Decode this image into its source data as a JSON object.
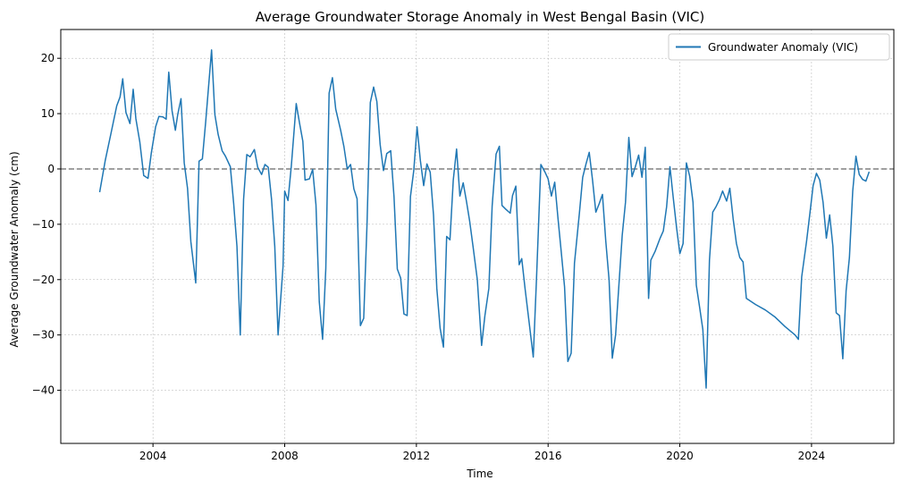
{
  "chart_data": {
    "type": "line",
    "title": "Average Groundwater Storage Anomaly in West Bengal Basin (VIC)",
    "xlabel": "Time",
    "ylabel": "Average Groundwater Anomaly (cm)",
    "xlim": [
      2001.2,
      2026.5
    ],
    "ylim": [
      -49.6,
      25.2
    ],
    "xticks": [
      2004,
      2008,
      2012,
      2016,
      2020,
      2024
    ],
    "xtick_labels": [
      "2004",
      "2008",
      "2012",
      "2016",
      "2020",
      "2024"
    ],
    "yticks": [
      -40,
      -30,
      -20,
      -10,
      0,
      10,
      20
    ],
    "ytick_labels": [
      "−40",
      "−30",
      "−20",
      "−10",
      "0",
      "10",
      "20"
    ],
    "grid": true,
    "reference_line": {
      "y": 0,
      "style": "dashed",
      "color": "#808080"
    },
    "legend": {
      "placement": "top-right"
    },
    "series": [
      {
        "name": "Groundwater Anomaly (VIC)",
        "color": "#1f77b4",
        "points": [
          [
            2002.38,
            -4.2
          ],
          [
            2002.55,
            1.5
          ],
          [
            2002.72,
            6.3
          ],
          [
            2002.9,
            11.4
          ],
          [
            2003.0,
            13.0
          ],
          [
            2003.08,
            16.3
          ],
          [
            2003.18,
            10.2
          ],
          [
            2003.3,
            8.2
          ],
          [
            2003.4,
            14.4
          ],
          [
            2003.48,
            9.1
          ],
          [
            2003.6,
            4.9
          ],
          [
            2003.72,
            -1.2
          ],
          [
            2003.85,
            -1.7
          ],
          [
            2003.95,
            2.9
          ],
          [
            2004.08,
            7.6
          ],
          [
            2004.18,
            9.5
          ],
          [
            2004.3,
            9.4
          ],
          [
            2004.4,
            9.0
          ],
          [
            2004.48,
            17.5
          ],
          [
            2004.58,
            10.5
          ],
          [
            2004.68,
            7.0
          ],
          [
            2004.75,
            9.8
          ],
          [
            2004.85,
            12.7
          ],
          [
            2004.95,
            1.1
          ],
          [
            2005.05,
            -3.5
          ],
          [
            2005.15,
            -13.1
          ],
          [
            2005.3,
            -20.6
          ],
          [
            2005.4,
            1.4
          ],
          [
            2005.5,
            1.8
          ],
          [
            2005.6,
            8.5
          ],
          [
            2005.78,
            21.5
          ],
          [
            2005.88,
            9.8
          ],
          [
            2005.98,
            6.2
          ],
          [
            2006.1,
            3.3
          ],
          [
            2006.2,
            2.3
          ],
          [
            2006.35,
            0.4
          ],
          [
            2006.45,
            -6.2
          ],
          [
            2006.55,
            -14.0
          ],
          [
            2006.65,
            -30.0
          ],
          [
            2006.75,
            -5.5
          ],
          [
            2006.85,
            2.6
          ],
          [
            2006.95,
            2.2
          ],
          [
            2007.08,
            3.5
          ],
          [
            2007.18,
            0.3
          ],
          [
            2007.3,
            -1.0
          ],
          [
            2007.4,
            0.8
          ],
          [
            2007.5,
            0.3
          ],
          [
            2007.6,
            -5.5
          ],
          [
            2007.7,
            -14.0
          ],
          [
            2007.8,
            -30.0
          ],
          [
            2007.95,
            -17.5
          ],
          [
            2008.0,
            -4.0
          ],
          [
            2008.1,
            -5.7
          ],
          [
            2008.2,
            0.5
          ],
          [
            2008.35,
            11.8
          ],
          [
            2008.45,
            8.3
          ],
          [
            2008.55,
            5.0
          ],
          [
            2008.62,
            -2.0
          ],
          [
            2008.75,
            -1.8
          ],
          [
            2008.85,
            -0.1
          ],
          [
            2008.95,
            -6.5
          ],
          [
            2009.05,
            -24.0
          ],
          [
            2009.15,
            -30.8
          ],
          [
            2009.25,
            -18.0
          ],
          [
            2009.35,
            13.7
          ],
          [
            2009.45,
            16.5
          ],
          [
            2009.55,
            10.8
          ],
          [
            2009.7,
            7.0
          ],
          [
            2009.8,
            4.0
          ],
          [
            2009.9,
            0.0
          ],
          [
            2010.0,
            0.8
          ],
          [
            2010.1,
            -3.6
          ],
          [
            2010.2,
            -5.4
          ],
          [
            2010.3,
            -28.3
          ],
          [
            2010.4,
            -27.0
          ],
          [
            2010.5,
            -10.0
          ],
          [
            2010.6,
            12.0
          ],
          [
            2010.7,
            14.8
          ],
          [
            2010.8,
            12.2
          ],
          [
            2010.9,
            4.4
          ],
          [
            2011.0,
            -0.3
          ],
          [
            2011.1,
            2.8
          ],
          [
            2011.22,
            3.3
          ],
          [
            2011.32,
            -5.0
          ],
          [
            2011.42,
            -18.1
          ],
          [
            2011.52,
            -19.7
          ],
          [
            2011.62,
            -26.2
          ],
          [
            2011.72,
            -26.5
          ],
          [
            2011.82,
            -5.0
          ],
          [
            2011.92,
            -0.3
          ],
          [
            2012.02,
            7.6
          ],
          [
            2012.12,
            1.5
          ],
          [
            2012.22,
            -3.0
          ],
          [
            2012.32,
            0.9
          ],
          [
            2012.42,
            -0.6
          ],
          [
            2012.52,
            -8.3
          ],
          [
            2012.62,
            -21.6
          ],
          [
            2012.72,
            -28.8
          ],
          [
            2012.82,
            -32.2
          ],
          [
            2012.92,
            -12.2
          ],
          [
            2013.02,
            -12.8
          ],
          [
            2013.12,
            -2.0
          ],
          [
            2013.22,
            3.6
          ],
          [
            2013.32,
            -4.9
          ],
          [
            2013.42,
            -2.5
          ],
          [
            2013.52,
            -5.8
          ],
          [
            2013.62,
            -9.5
          ],
          [
            2013.72,
            -14.0
          ],
          [
            2013.85,
            -20.0
          ],
          [
            2013.98,
            -31.9
          ],
          [
            2014.08,
            -26.5
          ],
          [
            2014.2,
            -21.6
          ],
          [
            2014.3,
            -6.7
          ],
          [
            2014.42,
            2.7
          ],
          [
            2014.52,
            4.1
          ],
          [
            2014.6,
            -6.6
          ],
          [
            2014.72,
            -7.3
          ],
          [
            2014.85,
            -8.0
          ],
          [
            2014.92,
            -4.8
          ],
          [
            2015.02,
            -3.1
          ],
          [
            2015.12,
            -17.3
          ],
          [
            2015.2,
            -16.2
          ],
          [
            2015.3,
            -21.6
          ],
          [
            2015.42,
            -27.5
          ],
          [
            2015.55,
            -34.0
          ],
          [
            2015.65,
            -19.5
          ],
          [
            2015.78,
            0.8
          ],
          [
            2015.9,
            -0.5
          ],
          [
            2016.0,
            -1.8
          ],
          [
            2016.1,
            -4.9
          ],
          [
            2016.2,
            -2.4
          ],
          [
            2016.3,
            -9.0
          ],
          [
            2016.4,
            -15.0
          ],
          [
            2016.5,
            -21.3
          ],
          [
            2016.6,
            -34.8
          ],
          [
            2016.7,
            -33.3
          ],
          [
            2016.8,
            -17.0
          ],
          [
            2016.95,
            -8.0
          ],
          [
            2017.05,
            -1.5
          ],
          [
            2017.15,
            0.9
          ],
          [
            2017.25,
            3.0
          ],
          [
            2017.35,
            -2.0
          ],
          [
            2017.45,
            -7.8
          ],
          [
            2017.55,
            -6.3
          ],
          [
            2017.65,
            -4.6
          ],
          [
            2017.75,
            -13.0
          ],
          [
            2017.85,
            -20.0
          ],
          [
            2017.95,
            -34.2
          ],
          [
            2018.05,
            -30.0
          ],
          [
            2018.15,
            -21.0
          ],
          [
            2018.25,
            -12.0
          ],
          [
            2018.35,
            -6.0
          ],
          [
            2018.45,
            5.7
          ],
          [
            2018.55,
            -1.4
          ],
          [
            2018.65,
            0.4
          ],
          [
            2018.75,
            2.5
          ],
          [
            2018.85,
            -1.5
          ],
          [
            2018.95,
            3.9
          ],
          [
            2019.05,
            -23.4
          ],
          [
            2019.12,
            -16.5
          ],
          [
            2019.25,
            -14.9
          ],
          [
            2019.4,
            -12.5
          ],
          [
            2019.5,
            -11.2
          ],
          [
            2019.6,
            -6.8
          ],
          [
            2019.7,
            0.4
          ],
          [
            2019.8,
            -5.2
          ],
          [
            2019.9,
            -10.6
          ],
          [
            2020.0,
            -15.3
          ],
          [
            2020.1,
            -13.5
          ],
          [
            2020.2,
            1.1
          ],
          [
            2020.3,
            -1.3
          ],
          [
            2020.4,
            -6.0
          ],
          [
            2020.5,
            -21.0
          ],
          [
            2020.6,
            -25.0
          ],
          [
            2020.7,
            -29.0
          ],
          [
            2020.8,
            -39.6
          ],
          [
            2020.9,
            -16.5
          ],
          [
            2021.0,
            -7.8
          ],
          [
            2021.1,
            -6.8
          ],
          [
            2021.2,
            -5.6
          ],
          [
            2021.3,
            -4.0
          ],
          [
            2021.42,
            -5.8
          ],
          [
            2021.52,
            -3.5
          ],
          [
            2021.62,
            -9.0
          ],
          [
            2021.72,
            -13.5
          ],
          [
            2021.82,
            -16.0
          ],
          [
            2021.92,
            -16.8
          ],
          [
            2022.02,
            -23.4
          ],
          [
            2022.3,
            -24.5
          ],
          [
            2022.6,
            -25.5
          ],
          [
            2022.9,
            -26.8
          ],
          [
            2023.2,
            -28.5
          ],
          [
            2023.5,
            -30.0
          ],
          [
            2023.6,
            -30.8
          ],
          [
            2023.7,
            -19.5
          ],
          [
            2023.85,
            -13.0
          ],
          [
            2023.95,
            -8.0
          ],
          [
            2024.05,
            -3.0
          ],
          [
            2024.15,
            -0.8
          ],
          [
            2024.25,
            -2.0
          ],
          [
            2024.35,
            -6.0
          ],
          [
            2024.45,
            -12.5
          ],
          [
            2024.55,
            -8.3
          ],
          [
            2024.65,
            -14.0
          ],
          [
            2024.75,
            -26.0
          ],
          [
            2024.85,
            -26.5
          ],
          [
            2024.95,
            -34.3
          ],
          [
            2025.05,
            -22.0
          ],
          [
            2025.15,
            -16.0
          ],
          [
            2025.25,
            -4.0
          ],
          [
            2025.35,
            2.3
          ],
          [
            2025.45,
            -1.0
          ],
          [
            2025.55,
            -1.9
          ],
          [
            2025.65,
            -2.2
          ],
          [
            2025.75,
            -0.5
          ]
        ]
      }
    ]
  }
}
